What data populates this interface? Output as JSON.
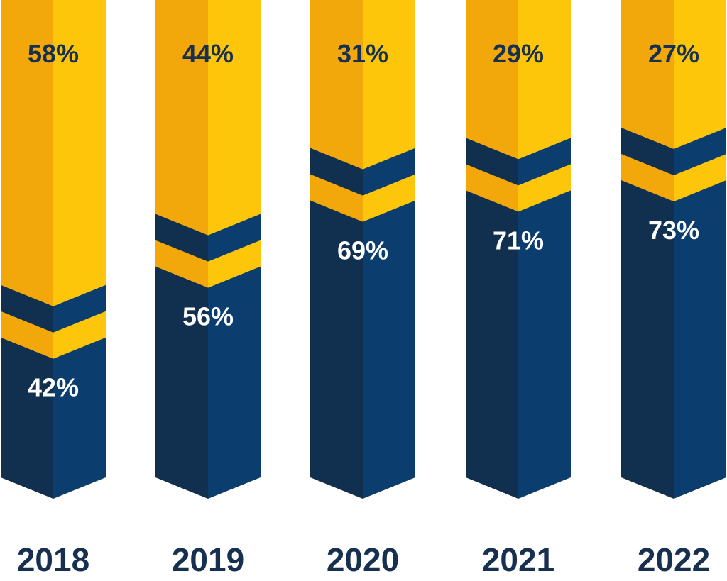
{
  "chart_data": {
    "type": "bar",
    "stacked": true,
    "categories": [
      "2018",
      "2019",
      "2020",
      "2021",
      "2022"
    ],
    "series": [
      {
        "values": [
          42,
          56,
          69,
          71,
          73
        ],
        "labels": [
          "42%",
          "56%",
          "69%",
          "71%",
          "73%"
        ]
      },
      {
        "values": [
          58,
          44,
          31,
          29,
          27
        ],
        "labels": [
          "58%",
          "44%",
          "31%",
          "29%",
          "27%"
        ]
      }
    ],
    "ylim": [
      0,
      100
    ],
    "grid": false,
    "colors": {
      "bottom_left": "#11304f",
      "bottom_right": "#0b3e6e",
      "top_left": "#f2a70a",
      "top_right": "#fdc60b",
      "bottom_label": "#ffffff",
      "top_label": "#17304f",
      "year_label": "#17304f"
    }
  }
}
